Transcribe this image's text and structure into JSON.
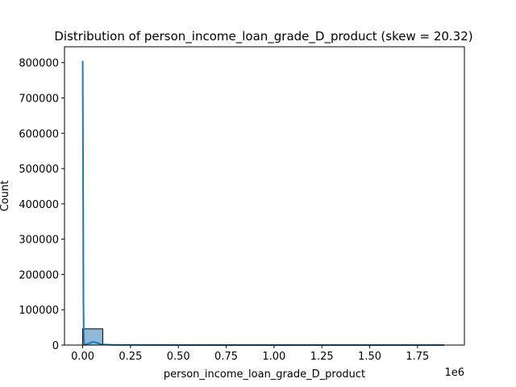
{
  "chart_data": {
    "type": "bar",
    "title": "Distribution of person_income_loan_grade_D_product (skew = 20.32)",
    "xlabel": "person_income_loan_grade_D_product",
    "ylabel": "Count",
    "x_offset_label": "1e6",
    "xlim": [
      -95000,
      1995000
    ],
    "ylim": [
      0,
      845000
    ],
    "x_ticks": [
      0,
      250000,
      500000,
      750000,
      1000000,
      1250000,
      1500000,
      1750000
    ],
    "x_tick_labels": [
      "0.00",
      "0.25",
      "0.50",
      "0.75",
      "1.00",
      "1.25",
      "1.50",
      "1.75"
    ],
    "y_ticks": [
      0,
      100000,
      200000,
      300000,
      400000,
      500000,
      600000,
      700000,
      800000
    ],
    "y_tick_labels": [
      "0",
      "100000",
      "200000",
      "300000",
      "400000",
      "500000",
      "600000",
      "700000",
      "800000"
    ],
    "bins": [
      {
        "x0": 0,
        "x1": 105000,
        "count": 46000
      },
      {
        "x0": 105000,
        "x1": 210000,
        "count": 150
      },
      {
        "x0": 210000,
        "x1": 315000,
        "count": 20
      },
      {
        "x0": 315000,
        "x1": 420000,
        "count": 5
      },
      {
        "x0": 420000,
        "x1": 525000,
        "count": 2
      },
      {
        "x0": 525000,
        "x1": 630000,
        "count": 1
      },
      {
        "x0": 630000,
        "x1": 735000,
        "count": 1
      },
      {
        "x0": 735000,
        "x1": 840000,
        "count": 0
      },
      {
        "x0": 840000,
        "x1": 945000,
        "count": 1
      },
      {
        "x0": 945000,
        "x1": 1050000,
        "count": 0
      },
      {
        "x0": 1050000,
        "x1": 1155000,
        "count": 0
      },
      {
        "x0": 1155000,
        "x1": 1260000,
        "count": 0
      },
      {
        "x0": 1260000,
        "x1": 1365000,
        "count": 0
      },
      {
        "x0": 1365000,
        "x1": 1470000,
        "count": 0
      },
      {
        "x0": 1470000,
        "x1": 1575000,
        "count": 0
      },
      {
        "x0": 1575000,
        "x1": 1680000,
        "count": 0
      },
      {
        "x0": 1680000,
        "x1": 1785000,
        "count": 0
      },
      {
        "x0": 1785000,
        "x1": 1890000,
        "count": 1
      }
    ],
    "kde": {
      "x": [
        0,
        2000,
        4000,
        6000,
        8000,
        10000,
        12000,
        14000,
        20000,
        30000,
        45000,
        60000,
        80000,
        100000,
        150000,
        300000,
        600000,
        1000000,
        1500000,
        1890000
      ],
      "y": [
        805000,
        500000,
        120000,
        20000,
        4000,
        1000,
        600,
        400,
        2000,
        4000,
        8000,
        9000,
        5000,
        2000,
        600,
        200,
        50,
        10,
        5,
        2
      ]
    },
    "colors": {
      "bar_fill": "#1f77b4",
      "bar_fill_opacity": 0.5,
      "bar_edge": "#000000",
      "kde_line": "#1f77b4"
    },
    "grid": false,
    "legend": "none"
  }
}
